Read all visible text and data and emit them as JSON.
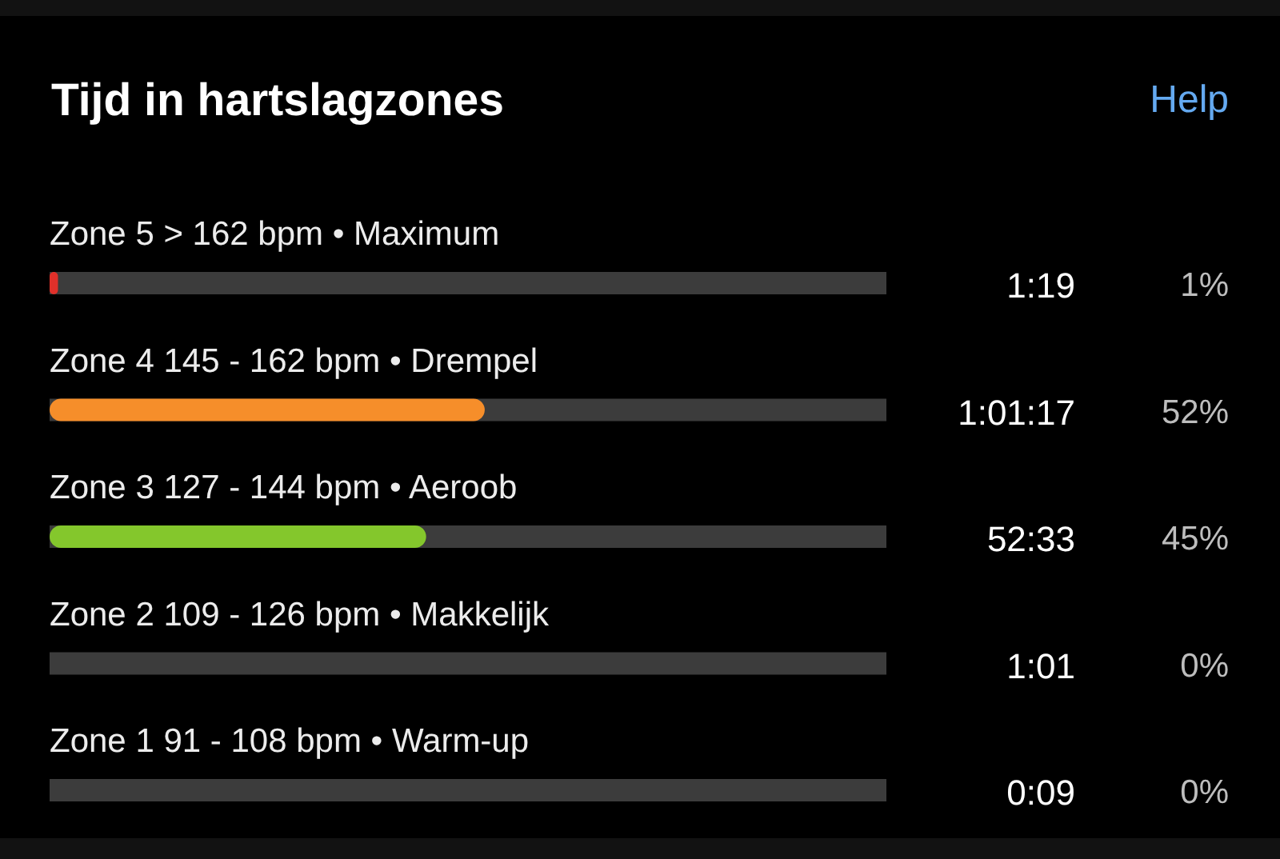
{
  "chart_data": {
    "type": "bar",
    "orientation": "horizontal",
    "title": "Tijd in hartslagzones",
    "categories": [
      "Zone 5 > 162 bpm • Maximum",
      "Zone 4 145 - 162 bpm • Drempel",
      "Zone 3 127 - 144 bpm • Aeroob",
      "Zone 2 109 - 126 bpm • Makkelijk",
      "Zone 1 91 - 108 bpm • Warm-up"
    ],
    "values": [
      1,
      52,
      45,
      0,
      0
    ],
    "colors": [
      "#e0302a",
      "#f68e2a",
      "#84c72c",
      "#3f8fe0",
      null
    ],
    "value_labels": [
      "1%",
      "52%",
      "45%",
      "0%",
      "0%"
    ],
    "xlim": [
      0,
      100
    ],
    "annotations": [
      "Help",
      "1:19",
      "1:01:17",
      "52:33",
      "1:01",
      "0:09"
    ]
  }
}
